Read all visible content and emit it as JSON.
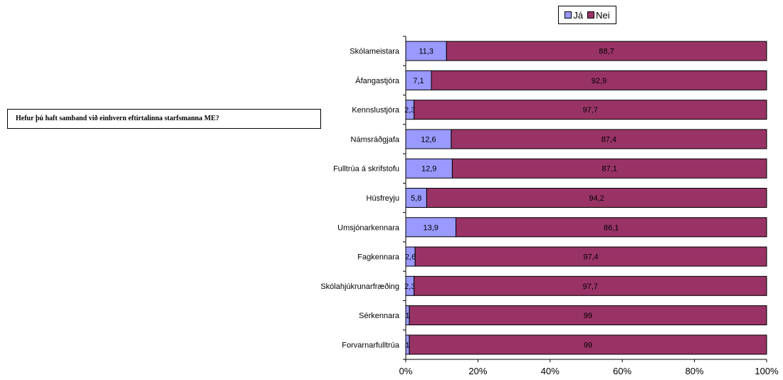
{
  "question": "Hefur þú haft samband við einhvern eftirtalinna starfsmanna ME?",
  "colors": {
    "ja": "#9999ff",
    "nei": "#993366"
  },
  "chart_data": {
    "type": "bar",
    "orientation": "horizontal",
    "stacked": true,
    "percent_axis": true,
    "categories": [
      "Skólameistara",
      "Áfangastjóra",
      "Kennslustjóra",
      "Námsráðgjafa",
      "Fulltrúa á skrifstofu",
      "Húsfreyju",
      "Umsjónarkennara",
      "Fagkennara",
      "Skólahjúkrunarfræðing",
      "Sérkennara",
      "Forvarnarfulltrúa"
    ],
    "series": [
      {
        "name": "Já",
        "values": [
          11.3,
          7.1,
          2.3,
          12.6,
          12.9,
          5.8,
          13.9,
          2.6,
          2.3,
          1,
          1
        ],
        "labels": [
          "11,3",
          "7,1",
          "2,3",
          "12,6",
          "12,9",
          "5,8",
          "13,9",
          "2,6",
          "2,3",
          "1",
          "1"
        ]
      },
      {
        "name": "Nei",
        "values": [
          88.7,
          92.9,
          97.7,
          87.4,
          87.1,
          94.2,
          86.1,
          97.4,
          97.7,
          99,
          99
        ],
        "labels": [
          "88,7",
          "92,9",
          "97,7",
          "87,4",
          "87,1",
          "94,2",
          "86,1",
          "97,4",
          "97,7",
          "99",
          "99"
        ]
      }
    ],
    "x_ticks": [
      "0%",
      "20%",
      "40%",
      "60%",
      "80%",
      "100%"
    ],
    "xlim": [
      0,
      100
    ],
    "legend_position": "top",
    "grid": false
  }
}
